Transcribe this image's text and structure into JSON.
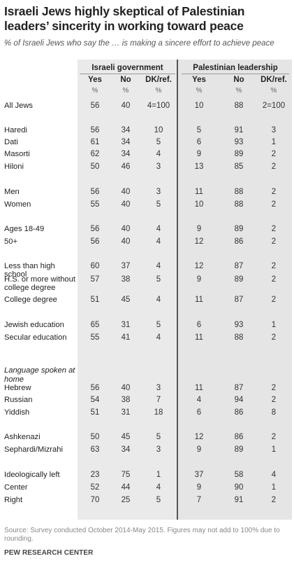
{
  "title": "Israeli Jews highly skeptical of Palestinian leaders’ sincerity in working toward peace",
  "subtitle": "% of Israeli Jews who say the … is making a sincere effort to achieve peace",
  "groups": [
    "Israeli government",
    "Palestinian leadership"
  ],
  "columns": [
    "Yes",
    "No",
    "DK/ref.",
    "Yes",
    "No",
    "DK/ref."
  ],
  "unit": "%",
  "section_label": "Language spoken at home",
  "source": "Source: Survey conducted October 2014-May 2015. Figures may not add to 100% due to rounding.",
  "brand": "PEW RESEARCH CENTER",
  "chart_data": {
    "type": "table",
    "title": "Israeli Jews highly skeptical of Palestinian leaders’ sincerity in working toward peace",
    "subtitle": "% of Israeli Jews who say the … is making a sincere effort to achieve peace",
    "column_groups": [
      {
        "name": "Israeli government",
        "columns": [
          "Yes",
          "No",
          "DK/ref."
        ]
      },
      {
        "name": "Palestinian leadership",
        "columns": [
          "Yes",
          "No",
          "DK/ref."
        ]
      }
    ],
    "rows": [
      {
        "label": "All Jews",
        "values": [
          "56",
          "40",
          "4=100",
          "10",
          "88",
          "2=100"
        ]
      },
      {
        "label": "Haredi",
        "values": [
          "56",
          "34",
          "10",
          "5",
          "91",
          "3"
        ]
      },
      {
        "label": "Dati",
        "values": [
          "61",
          "34",
          "5",
          "6",
          "93",
          "1"
        ]
      },
      {
        "label": "Masorti",
        "values": [
          "62",
          "34",
          "4",
          "9",
          "89",
          "2"
        ]
      },
      {
        "label": "Hiloni",
        "values": [
          "50",
          "46",
          "3",
          "13",
          "85",
          "2"
        ]
      },
      {
        "label": "Men",
        "values": [
          "56",
          "40",
          "3",
          "11",
          "88",
          "2"
        ]
      },
      {
        "label": "Women",
        "values": [
          "55",
          "40",
          "5",
          "10",
          "88",
          "2"
        ]
      },
      {
        "label": "Ages 18-49",
        "values": [
          "56",
          "40",
          "4",
          "9",
          "89",
          "2"
        ]
      },
      {
        "label": "50+",
        "values": [
          "56",
          "40",
          "4",
          "12",
          "86",
          "2"
        ]
      },
      {
        "label": "Less than high school",
        "values": [
          "60",
          "37",
          "4",
          "12",
          "87",
          "2"
        ]
      },
      {
        "label": "H.S. or more without college degree",
        "values": [
          "57",
          "38",
          "5",
          "9",
          "89",
          "2"
        ]
      },
      {
        "label": "College degree",
        "values": [
          "51",
          "45",
          "4",
          "11",
          "87",
          "2"
        ]
      },
      {
        "label": "Jewish education",
        "values": [
          "65",
          "31",
          "5",
          "6",
          "93",
          "1"
        ]
      },
      {
        "label": "Secular education",
        "values": [
          "55",
          "41",
          "4",
          "11",
          "88",
          "2"
        ]
      },
      {
        "label": "Hebrew",
        "values": [
          "56",
          "40",
          "3",
          "11",
          "87",
          "2"
        ]
      },
      {
        "label": "Russian",
        "values": [
          "54",
          "38",
          "7",
          "4",
          "94",
          "2"
        ]
      },
      {
        "label": "Yiddish",
        "values": [
          "51",
          "31",
          "18",
          "6",
          "86",
          "8"
        ]
      },
      {
        "label": "Ashkenazi",
        "values": [
          "50",
          "45",
          "5",
          "12",
          "86",
          "2"
        ]
      },
      {
        "label": "Sephardi/Mizrahi",
        "values": [
          "63",
          "34",
          "3",
          "9",
          "89",
          "1"
        ]
      },
      {
        "label": "Ideologically left",
        "values": [
          "23",
          "75",
          "1",
          "37",
          "58",
          "4"
        ]
      },
      {
        "label": "Center",
        "values": [
          "52",
          "44",
          "4",
          "9",
          "90",
          "1"
        ]
      },
      {
        "label": "Right",
        "values": [
          "70",
          "25",
          "5",
          "7",
          "91",
          "2"
        ]
      }
    ]
  }
}
